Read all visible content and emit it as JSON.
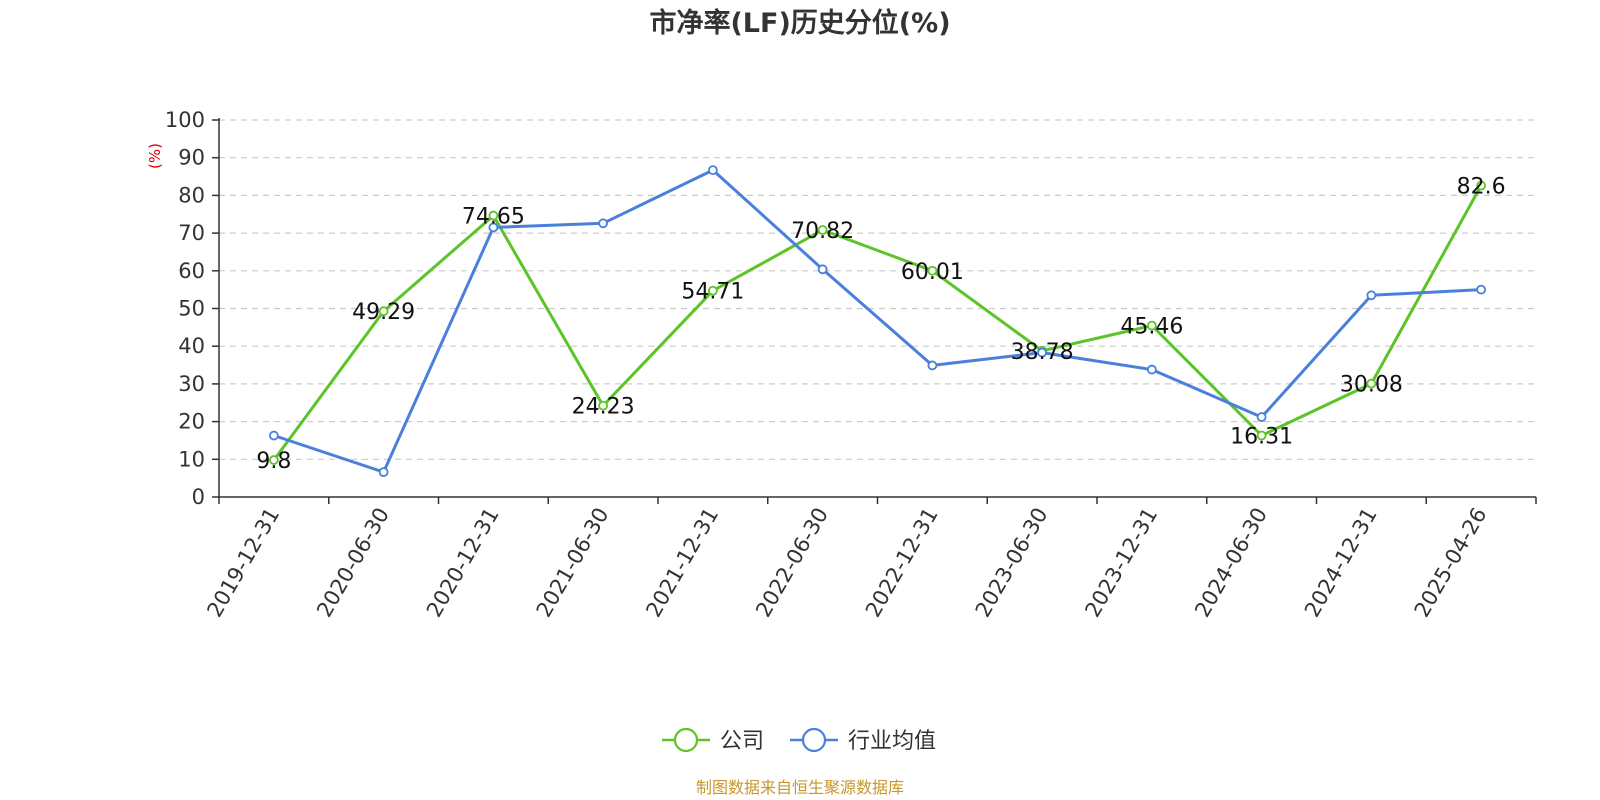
{
  "chart_data": {
    "type": "line",
    "title": "市净率(LF)历史分位(%)",
    "ylabel": "(%)",
    "ylim": [
      0,
      100
    ],
    "yticks": [
      0,
      10,
      20,
      30,
      40,
      50,
      60,
      70,
      80,
      90,
      100
    ],
    "grid": true,
    "legend_position": "bottom-center",
    "categories": [
      "2019-12-31",
      "2020-06-30",
      "2020-12-31",
      "2021-06-30",
      "2021-12-31",
      "2022-06-30",
      "2022-12-31",
      "2023-06-30",
      "2023-12-31",
      "2024-06-30",
      "2024-12-31",
      "2025-04-26"
    ],
    "series": [
      {
        "name": "公司",
        "color": "#5bc426",
        "values": [
          9.8,
          49.29,
          74.65,
          24.23,
          54.71,
          70.82,
          60.01,
          38.78,
          45.46,
          16.31,
          30.08,
          82.6
        ],
        "data_labels": [
          "9.8",
          "49.29",
          "74.65",
          "24.23",
          "54.71",
          "70.82",
          "60.01",
          "38.78",
          "45.46",
          "16.31",
          "30.08",
          "82.6"
        ]
      },
      {
        "name": "行业均值",
        "color": "#4a80dc",
        "values": [
          16.3,
          6.6,
          71.5,
          72.6,
          86.7,
          60.4,
          34.9,
          38.3,
          33.8,
          21.2,
          53.5,
          55.0
        ]
      }
    ]
  },
  "footer": {
    "source": "制图数据来自恒生聚源数据库"
  }
}
